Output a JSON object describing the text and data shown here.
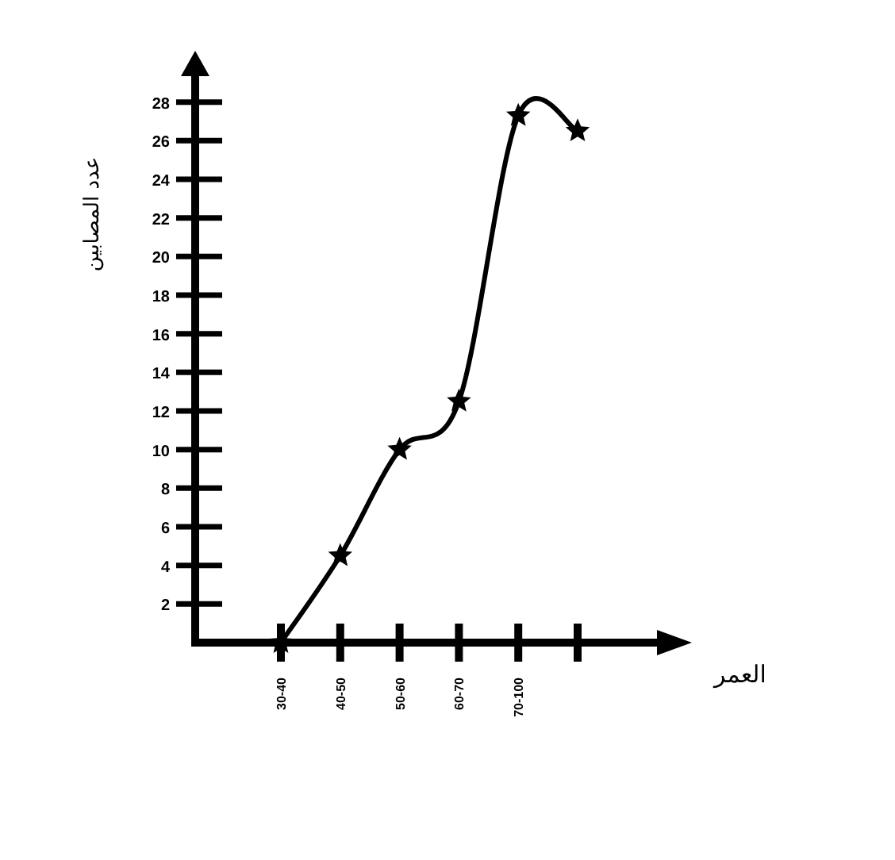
{
  "chart_data": {
    "type": "line",
    "xlabel": "العمر",
    "ylabel": "عدد المصابين",
    "categories": [
      "30-40",
      "40-50",
      "50-60",
      "60-70",
      "70-100",
      null
    ],
    "values": [
      0,
      4.5,
      10,
      12.5,
      27.3,
      26.5
    ],
    "color": "#000000",
    "marker": "star",
    "line_style": "solid",
    "ylim": [
      0,
      30
    ],
    "yticks": [
      2,
      4,
      6,
      8,
      10,
      12,
      14,
      16,
      18,
      20,
      22,
      24,
      26,
      28
    ]
  }
}
